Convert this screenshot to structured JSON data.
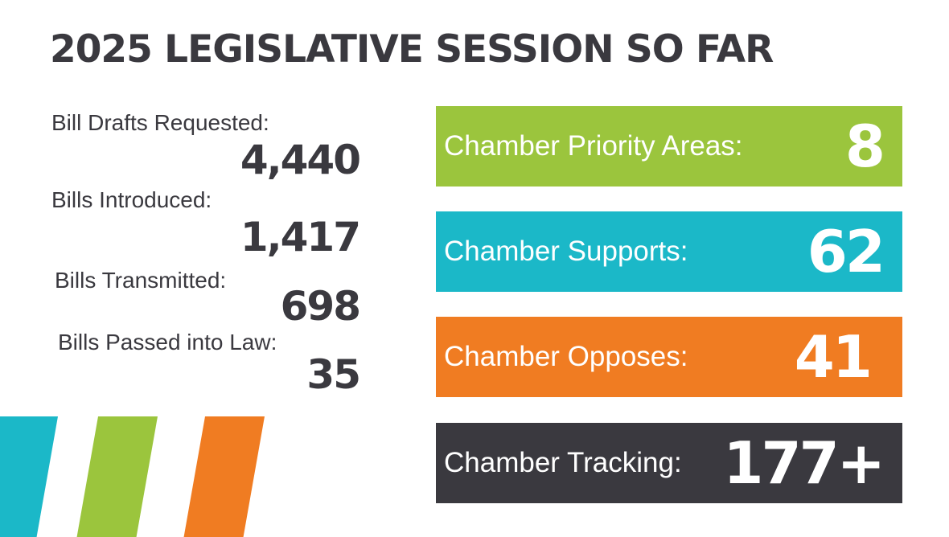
{
  "title": "2025 LEGISLATIVE SESSION SO FAR",
  "stats": [
    {
      "label": "Bill Drafts Requested:",
      "value": "4,440"
    },
    {
      "label": "Bills Introduced:",
      "value": "1,417"
    },
    {
      "label": "Bills Transmitted:",
      "value": "698"
    },
    {
      "label": "Bills Passed into Law:",
      "value": "35"
    }
  ],
  "boxes": [
    {
      "label": "Chamber Priority Areas:",
      "value": "8",
      "color": "#9bc53d"
    },
    {
      "label": "Chamber Supports:",
      "value": "62",
      "color": "#1bb8c8"
    },
    {
      "label": "Chamber Opposes:",
      "value": "41",
      "color": "#f07c22"
    },
    {
      "label": "Chamber Tracking:",
      "value": "177+",
      "color": "#3a393f"
    }
  ],
  "colors": {
    "text_dark": "#3a393f",
    "stripe_teal": "#1bb8c8",
    "stripe_green": "#9bc53d",
    "stripe_orange": "#f07c22"
  }
}
